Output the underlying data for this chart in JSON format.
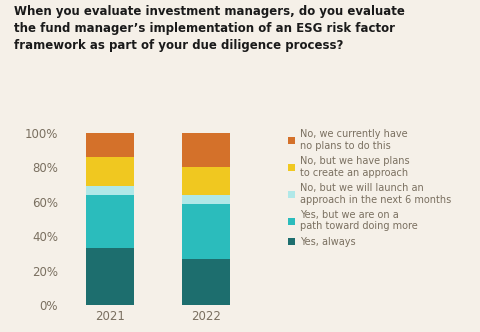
{
  "title_line1": "When you evaluate investment managers, do you evaluate",
  "title_line2": "the fund manager’s implementation of an ESG risk factor",
  "title_line3": "framework as part of your due diligence process?",
  "years": [
    "2021",
    "2022"
  ],
  "categories": [
    "Yes, always",
    "Yes, but we are on a\npath toward doing more",
    "No, but we will launch an\napproach in the next 6 months",
    "No, but we have plans\nto create an approach",
    "No, we currently have\nno plans to do this"
  ],
  "legend_labels": [
    "No, we currently have\nno plans to do this",
    "No, but we have plans\nto create an approach",
    "No, but we will launch an\napproach in the next 6 months",
    "Yes, but we are on a\npath toward doing more",
    "Yes, always"
  ],
  "values_2021": [
    33,
    31,
    5,
    17,
    14
  ],
  "values_2022": [
    27,
    32,
    5,
    16,
    20
  ],
  "colors": [
    "#1d6e6e",
    "#2bbcbc",
    "#b0e8e8",
    "#f0c820",
    "#d4712a"
  ],
  "background_color": "#f5f0e8",
  "text_color": "#7a7060",
  "title_color": "#1a1a1a",
  "bar_width": 0.5,
  "ylim": [
    0,
    100
  ],
  "ylabel_ticks": [
    0,
    20,
    40,
    60,
    80,
    100
  ],
  "legend_fontsize": 7.0,
  "title_fontsize": 8.5,
  "tick_fontsize": 8.5
}
